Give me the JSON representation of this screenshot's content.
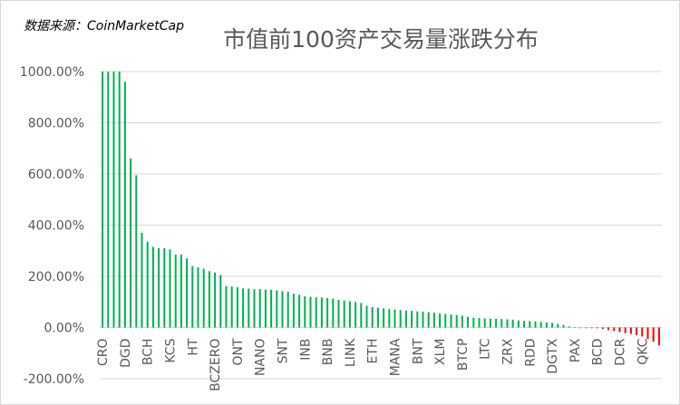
{
  "source_note": "数据来源：CoinMarketCap",
  "chart_data": {
    "type": "bar",
    "title": "市值前100资产交易量涨跌分布",
    "xlabel": "",
    "ylabel": "",
    "ylim": [
      -200,
      1000
    ],
    "y_ticks": [
      -200,
      0,
      200,
      400,
      600,
      800,
      1000
    ],
    "y_tick_labels": [
      "-200.00%",
      "0.00%",
      "200.00%",
      "400.00%",
      "600.00%",
      "800.00%",
      "1000.00%"
    ],
    "x_tick_labels": [
      "CRO",
      "DGD",
      "BCH",
      "KCS",
      "HT",
      "BCZERO",
      "ONT",
      "NANO",
      "SNT",
      "INB",
      "BNB",
      "LINK",
      "ETH",
      "MANA",
      "BNT",
      "XLM",
      "BTCP",
      "LTC",
      "ZRX",
      "RDD",
      "DGTX",
      "PAX",
      "BCD",
      "DCR",
      "QKC"
    ],
    "x_tick_every": 4,
    "grid": true,
    "legend": "none",
    "colors": {
      "positive": "#00b050",
      "negative": "#ff0000",
      "grid": "#d9d9d9",
      "text": "#595959"
    },
    "values": [
      1000,
      1000,
      1000,
      1000,
      960,
      660,
      595,
      370,
      335,
      315,
      310,
      310,
      305,
      285,
      285,
      270,
      240,
      235,
      230,
      220,
      215,
      205,
      162,
      160,
      157,
      153,
      152,
      150,
      150,
      148,
      147,
      145,
      142,
      140,
      132,
      128,
      122,
      120,
      118,
      117,
      115,
      113,
      108,
      105,
      103,
      100,
      96,
      85,
      80,
      77,
      75,
      72,
      70,
      68,
      66,
      65,
      63,
      62,
      60,
      58,
      55,
      53,
      51,
      49,
      46,
      42,
      38,
      37,
      36,
      35,
      34,
      33,
      32,
      31,
      28,
      26,
      25,
      24,
      22,
      20,
      18,
      14,
      10,
      4,
      1,
      0,
      0,
      0,
      -3,
      -6,
      -10,
      -14,
      -18,
      -22,
      -25,
      -30,
      -35,
      -45,
      -55,
      -70
    ]
  }
}
